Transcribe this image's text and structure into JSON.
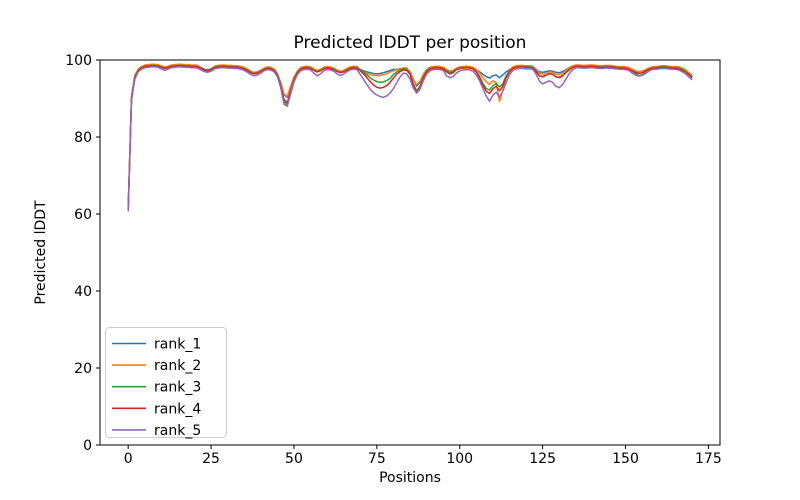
{
  "figure": {
    "background": "#ffffff",
    "axis_color": "#000000"
  },
  "chart_data": {
    "type": "line",
    "title": "Predicted lDDT per position",
    "xlabel": "Positions",
    "ylabel": "Predicted lDDT",
    "xlim": [
      -8.5,
      178.5
    ],
    "ylim": [
      0,
      100
    ],
    "x_ticks": [
      0,
      25,
      50,
      75,
      100,
      125,
      150,
      175
    ],
    "y_ticks": [
      0,
      20,
      40,
      60,
      80,
      100
    ],
    "grid": false,
    "legend_position": "lower left",
    "line_width": 1.5,
    "x": [
      0,
      1,
      2,
      3,
      4,
      5,
      6,
      7,
      8,
      9,
      10,
      11,
      12,
      13,
      14,
      15,
      16,
      17,
      18,
      19,
      20,
      21,
      22,
      23,
      24,
      25,
      26,
      27,
      28,
      29,
      30,
      31,
      32,
      33,
      34,
      35,
      36,
      37,
      38,
      39,
      40,
      41,
      42,
      43,
      44,
      45,
      46,
      47,
      48,
      49,
      50,
      51,
      52,
      53,
      54,
      55,
      56,
      57,
      58,
      59,
      60,
      61,
      62,
      63,
      64,
      65,
      66,
      67,
      68,
      69,
      70,
      71,
      72,
      73,
      74,
      75,
      76,
      77,
      78,
      79,
      80,
      81,
      82,
      83,
      84,
      85,
      86,
      87,
      88,
      89,
      90,
      91,
      92,
      93,
      94,
      95,
      96,
      97,
      98,
      99,
      100,
      101,
      102,
      103,
      104,
      105,
      106,
      107,
      108,
      109,
      110,
      111,
      112,
      113,
      114,
      115,
      116,
      117,
      118,
      119,
      120,
      121,
      122,
      123,
      124,
      125,
      126,
      127,
      128,
      129,
      130,
      131,
      132,
      133,
      134,
      135,
      136,
      137,
      138,
      139,
      140,
      141,
      142,
      143,
      144,
      145,
      146,
      147,
      148,
      149,
      150,
      151,
      152,
      153,
      154,
      155,
      156,
      157,
      158,
      159,
      160,
      161,
      162,
      163,
      164,
      165,
      166,
      167,
      168,
      169,
      170
    ],
    "series": [
      {
        "name": "rank_1",
        "color": "#1f77b4",
        "values": [
          61.5,
          90.5,
          96.0,
          97.4,
          98.1,
          98.5,
          98.6,
          98.7,
          98.7,
          98.6,
          98.3,
          98.0,
          98.2,
          98.5,
          98.6,
          98.7,
          98.7,
          98.6,
          98.6,
          98.5,
          98.5,
          98.4,
          98.0,
          97.6,
          97.4,
          97.7,
          98.2,
          98.4,
          98.5,
          98.5,
          98.4,
          98.4,
          98.3,
          98.3,
          98.1,
          97.9,
          97.4,
          97.0,
          96.7,
          96.9,
          97.2,
          97.7,
          98.0,
          97.9,
          97.5,
          96.3,
          94.2,
          91.0,
          90.3,
          93.0,
          95.5,
          96.9,
          97.8,
          98.1,
          98.2,
          98.0,
          97.5,
          97.2,
          97.4,
          97.9,
          98.1,
          98.0,
          97.7,
          97.2,
          97.0,
          97.1,
          97.6,
          98.0,
          98.2,
          98.1,
          97.5,
          97.2,
          96.9,
          96.7,
          96.5,
          96.4,
          96.5,
          96.7,
          97.0,
          97.3,
          97.5,
          97.6,
          97.7,
          97.8,
          97.7,
          97.0,
          95.0,
          93.2,
          94.2,
          96.2,
          97.3,
          97.9,
          98.1,
          98.2,
          98.1,
          97.9,
          97.5,
          97.1,
          97.3,
          97.7,
          98.0,
          98.1,
          98.2,
          98.1,
          97.9,
          97.4,
          96.9,
          96.3,
          95.7,
          95.3,
          95.9,
          96.1,
          95.4,
          96.1,
          96.9,
          97.5,
          98.0,
          98.3,
          98.4,
          98.4,
          98.3,
          98.3,
          98.2,
          97.6,
          96.9,
          96.8,
          97.0,
          97.2,
          97.1,
          96.8,
          96.7,
          97.0,
          97.5,
          98.0,
          98.3,
          98.5,
          98.5,
          98.4,
          98.4,
          98.5,
          98.5,
          98.4,
          98.3,
          98.3,
          98.4,
          98.4,
          98.3,
          98.2,
          98.1,
          98.1,
          98.0,
          97.8,
          97.5,
          97.2,
          97.0,
          97.1,
          97.4,
          97.7,
          98.0,
          98.1,
          98.2,
          98.3,
          98.3,
          98.2,
          98.1,
          98.1,
          98.0,
          97.8,
          97.3,
          96.6,
          95.9
        ]
      },
      {
        "name": "rank_2",
        "color": "#ff7f0e",
        "values": [
          61.2,
          90.2,
          95.8,
          97.6,
          98.3,
          98.7,
          98.8,
          98.9,
          98.9,
          98.8,
          98.5,
          98.2,
          98.4,
          98.7,
          98.8,
          98.9,
          98.9,
          98.8,
          98.8,
          98.7,
          98.7,
          98.6,
          97.8,
          97.2,
          96.8,
          97.4,
          98.4,
          98.6,
          98.7,
          98.7,
          98.6,
          98.6,
          98.5,
          98.5,
          98.3,
          98.1,
          97.6,
          97.1,
          96.8,
          97.0,
          97.4,
          97.9,
          98.2,
          98.1,
          97.7,
          96.5,
          94.0,
          91.2,
          90.6,
          93.2,
          95.6,
          97.1,
          98.0,
          98.3,
          98.4,
          98.2,
          97.7,
          97.3,
          97.6,
          98.1,
          98.3,
          98.2,
          97.9,
          97.4,
          97.1,
          97.3,
          97.8,
          98.2,
          98.4,
          98.3,
          97.3,
          96.9,
          96.5,
          96.2,
          96.0,
          95.9,
          96.0,
          96.2,
          96.5,
          96.9,
          97.2,
          97.5,
          97.7,
          98.0,
          97.9,
          97.0,
          94.8,
          93.6,
          94.5,
          96.3,
          97.5,
          98.1,
          98.3,
          98.4,
          98.3,
          98.1,
          97.5,
          97.0,
          97.3,
          97.9,
          98.2,
          98.3,
          98.4,
          98.3,
          98.1,
          97.5,
          96.6,
          95.4,
          94.3,
          93.7,
          94.6,
          94.1,
          89.3,
          92.1,
          95.6,
          97.4,
          98.2,
          98.5,
          98.6,
          98.6,
          98.5,
          98.5,
          98.4,
          97.5,
          96.5,
          96.3,
          96.6,
          96.9,
          96.8,
          96.3,
          96.2,
          96.6,
          97.3,
          98.0,
          98.5,
          98.7,
          98.7,
          98.6,
          98.6,
          98.7,
          98.7,
          98.6,
          98.5,
          98.5,
          98.6,
          98.6,
          98.5,
          98.4,
          98.3,
          98.3,
          98.2,
          98.0,
          97.6,
          97.2,
          96.9,
          97.1,
          97.5,
          97.9,
          98.2,
          98.3,
          98.4,
          98.5,
          98.5,
          98.4,
          98.3,
          98.3,
          98.2,
          98.0,
          97.5,
          96.8,
          96.1
        ]
      },
      {
        "name": "rank_3",
        "color": "#2ca02c",
        "values": [
          61.0,
          90.0,
          95.5,
          97.3,
          98.0,
          98.4,
          98.5,
          98.6,
          98.6,
          98.5,
          98.2,
          97.9,
          98.1,
          98.4,
          98.5,
          98.6,
          98.6,
          98.5,
          98.5,
          98.4,
          98.4,
          98.3,
          97.9,
          97.5,
          97.2,
          97.6,
          98.1,
          98.3,
          98.4,
          98.4,
          98.3,
          98.3,
          98.2,
          98.2,
          98.0,
          97.8,
          97.3,
          96.8,
          96.5,
          96.7,
          97.1,
          97.6,
          97.9,
          97.8,
          97.4,
          96.2,
          93.5,
          89.2,
          88.4,
          92.0,
          95.0,
          96.8,
          97.7,
          98.0,
          98.1,
          97.9,
          97.4,
          97.0,
          97.3,
          97.8,
          98.0,
          97.9,
          97.6,
          97.1,
          96.8,
          97.0,
          97.5,
          97.9,
          98.1,
          98.0,
          97.4,
          96.8,
          96.1,
          95.4,
          94.8,
          94.4,
          94.2,
          94.3,
          94.7,
          95.2,
          96.2,
          96.9,
          97.4,
          97.7,
          97.6,
          96.5,
          93.8,
          92.0,
          93.2,
          95.6,
          97.2,
          97.8,
          98.0,
          98.1,
          98.0,
          97.8,
          97.2,
          96.7,
          97.0,
          97.6,
          97.9,
          98.0,
          98.1,
          98.0,
          97.8,
          97.0,
          95.7,
          93.9,
          92.6,
          92.2,
          93.3,
          93.9,
          93.0,
          93.8,
          95.9,
          97.1,
          97.9,
          98.2,
          98.3,
          98.3,
          98.2,
          98.2,
          98.1,
          97.2,
          95.9,
          95.6,
          96.0,
          96.4,
          96.3,
          95.7,
          95.5,
          96.0,
          96.8,
          97.5,
          98.1,
          98.4,
          98.4,
          98.3,
          98.3,
          98.4,
          98.4,
          98.3,
          98.2,
          98.2,
          98.3,
          98.3,
          98.2,
          98.1,
          98.0,
          98.0,
          97.9,
          97.7,
          97.1,
          96.5,
          95.9,
          96.2,
          96.9,
          97.6,
          97.9,
          98.0,
          98.1,
          98.2,
          98.2,
          98.1,
          98.0,
          98.0,
          97.9,
          97.6,
          97.1,
          96.4,
          95.6
        ]
      },
      {
        "name": "rank_4",
        "color": "#d62728",
        "values": [
          61.0,
          89.8,
          95.3,
          97.2,
          97.9,
          98.3,
          98.4,
          98.5,
          98.5,
          98.4,
          98.1,
          97.8,
          98.0,
          98.3,
          98.4,
          98.5,
          98.5,
          98.4,
          98.4,
          98.3,
          98.3,
          98.2,
          97.8,
          97.4,
          97.1,
          97.5,
          98.0,
          98.2,
          98.3,
          98.3,
          98.2,
          98.2,
          98.1,
          98.1,
          97.9,
          97.7,
          97.2,
          96.7,
          96.4,
          96.6,
          97.0,
          97.5,
          97.8,
          97.7,
          97.3,
          96.0,
          93.2,
          89.8,
          88.9,
          91.8,
          94.8,
          96.6,
          97.6,
          97.9,
          98.0,
          97.8,
          97.3,
          96.9,
          97.2,
          97.7,
          97.9,
          97.8,
          97.5,
          97.0,
          96.7,
          96.9,
          97.4,
          97.8,
          98.0,
          97.9,
          97.2,
          96.4,
          95.4,
          94.4,
          93.5,
          92.9,
          92.7,
          92.9,
          93.4,
          94.2,
          95.3,
          96.3,
          97.0,
          97.4,
          97.3,
          96.3,
          93.5,
          91.6,
          92.8,
          95.3,
          96.9,
          97.7,
          97.9,
          98.0,
          97.9,
          97.7,
          96.9,
          96.4,
          96.7,
          97.5,
          97.8,
          97.9,
          98.0,
          97.9,
          97.7,
          96.9,
          95.4,
          93.4,
          91.9,
          91.3,
          92.5,
          93.2,
          92.0,
          93.2,
          95.4,
          96.9,
          97.8,
          98.1,
          98.2,
          98.2,
          98.1,
          98.1,
          98.0,
          97.0,
          95.9,
          95.7,
          96.1,
          96.5,
          96.3,
          95.6,
          95.4,
          95.9,
          96.7,
          97.4,
          98.0,
          98.3,
          98.3,
          98.2,
          98.2,
          98.3,
          98.3,
          98.2,
          98.1,
          98.1,
          98.2,
          98.2,
          98.1,
          98.0,
          97.9,
          97.9,
          97.8,
          97.6,
          97.2,
          96.8,
          96.5,
          96.7,
          97.1,
          97.5,
          97.8,
          97.9,
          98.0,
          98.1,
          98.1,
          98.0,
          97.9,
          97.9,
          97.7,
          97.4,
          96.9,
          96.2,
          95.5
        ]
      },
      {
        "name": "rank_5",
        "color": "#9467bd",
        "values": [
          60.8,
          89.5,
          95.0,
          96.9,
          97.6,
          98.0,
          98.1,
          98.2,
          98.2,
          98.1,
          97.7,
          97.3,
          97.6,
          98.0,
          98.1,
          98.2,
          98.2,
          98.1,
          98.1,
          98.0,
          98.0,
          97.9,
          97.4,
          97.0,
          96.8,
          97.1,
          97.7,
          97.9,
          98.0,
          98.0,
          97.9,
          97.9,
          97.8,
          97.8,
          97.6,
          97.3,
          96.8,
          96.2,
          95.9,
          96.1,
          96.6,
          97.2,
          97.5,
          97.4,
          96.9,
          95.7,
          92.8,
          88.5,
          88.0,
          91.2,
          94.3,
          96.2,
          97.2,
          97.5,
          97.6,
          97.4,
          96.6,
          95.9,
          96.4,
          97.2,
          97.5,
          97.4,
          97.1,
          96.4,
          96.0,
          96.3,
          97.0,
          97.4,
          97.6,
          97.5,
          96.2,
          94.9,
          93.6,
          92.4,
          91.5,
          90.9,
          90.5,
          90.3,
          90.7,
          91.4,
          92.6,
          94.1,
          95.6,
          96.6,
          96.4,
          95.1,
          92.7,
          91.4,
          92.4,
          94.6,
          96.4,
          97.2,
          97.5,
          97.6,
          97.5,
          97.3,
          95.9,
          95.4,
          95.7,
          96.6,
          97.2,
          97.4,
          97.5,
          97.4,
          97.1,
          96.1,
          94.6,
          92.6,
          90.6,
          89.3,
          90.9,
          91.6,
          90.4,
          91.9,
          94.1,
          96.1,
          97.3,
          97.7,
          97.8,
          97.8,
          97.7,
          97.7,
          97.6,
          96.4,
          94.6,
          93.8,
          94.2,
          94.6,
          94.2,
          93.2,
          92.8,
          93.6,
          95.0,
          96.4,
          97.4,
          98.0,
          98.0,
          97.9,
          97.9,
          98.0,
          98.0,
          97.9,
          97.8,
          97.8,
          97.9,
          97.9,
          97.8,
          97.7,
          97.6,
          97.6,
          97.5,
          97.3,
          96.6,
          96.1,
          95.8,
          96.0,
          96.5,
          97.1,
          97.5,
          97.6,
          97.7,
          97.8,
          97.8,
          97.7,
          97.6,
          97.6,
          97.4,
          97.0,
          96.5,
          95.7,
          94.9
        ]
      }
    ]
  }
}
